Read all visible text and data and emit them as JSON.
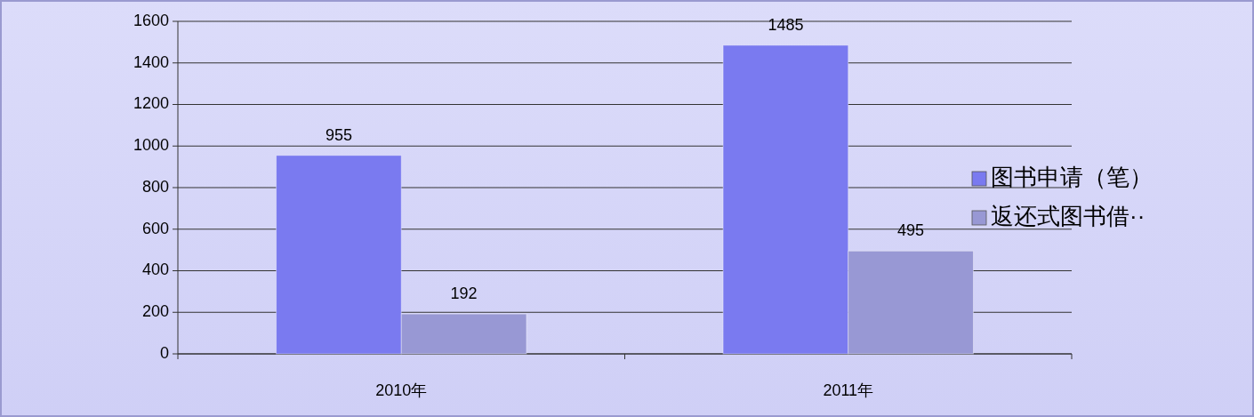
{
  "chart_data": {
    "type": "bar",
    "categories": [
      "2010年",
      "2011年"
    ],
    "series": [
      {
        "name": "图书申请（笔）",
        "color": "#7a7af0",
        "values": [
          955,
          1485
        ]
      },
      {
        "name": "返还式图书借··",
        "color": "#9898d4",
        "values": [
          192,
          495
        ]
      }
    ],
    "ylim": [
      0,
      1600
    ],
    "yticks": [
      0,
      200,
      400,
      600,
      800,
      1000,
      1200,
      1400,
      1600
    ],
    "grid": "y",
    "legend": "right",
    "data_labels": true
  }
}
